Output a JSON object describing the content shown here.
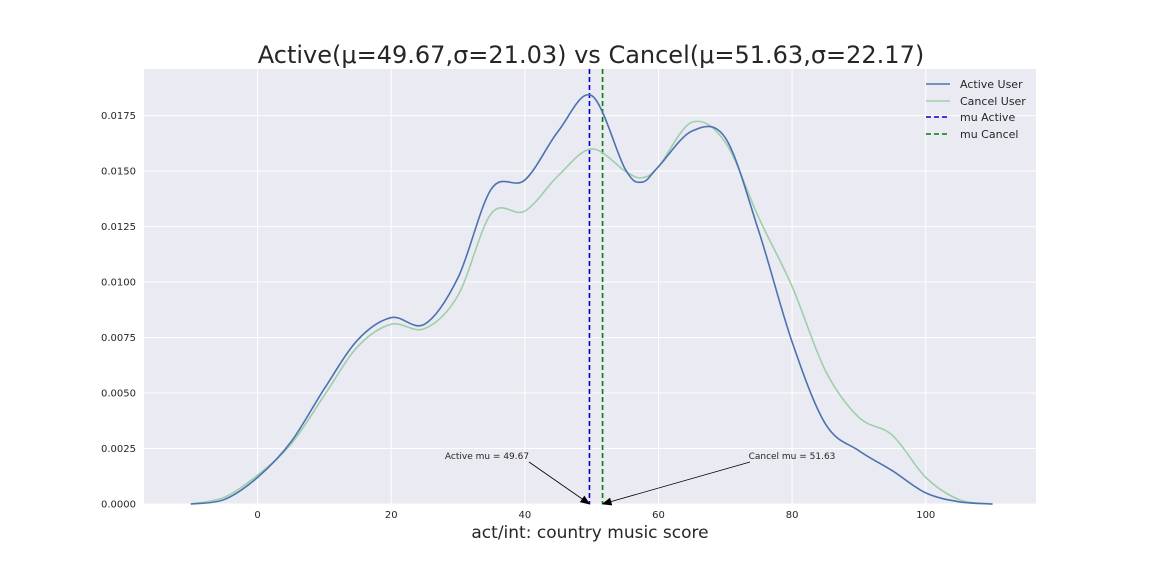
{
  "chart_data": {
    "type": "line",
    "title": "Active(μ=49.67,σ=21.03) vs Cancel(μ=51.63,σ=22.17)",
    "xlabel": "act/int: country music score",
    "ylabel": "",
    "xlim": [
      -17,
      116.5
    ],
    "ylim": [
      0,
      0.0196
    ],
    "xticks": [
      0,
      20,
      40,
      60,
      80,
      100
    ],
    "xtick_labels": [
      "0",
      "20",
      "40",
      "60",
      "80",
      "100"
    ],
    "yticks": [
      0.0,
      0.0025,
      0.005,
      0.0075,
      0.01,
      0.0125,
      0.015,
      0.0175
    ],
    "ytick_labels": [
      "0.0000",
      "0.0025",
      "0.0050",
      "0.0075",
      "0.0100",
      "0.0125",
      "0.0150",
      "0.0175"
    ],
    "grid": true,
    "legend_position": "top-right",
    "series": [
      {
        "name": "Active User",
        "color": "#4c72b0",
        "x": [
          -10,
          -5,
          0,
          5,
          10,
          15,
          20,
          25,
          30,
          35,
          40,
          45,
          50,
          55,
          57.5,
          60,
          65,
          70,
          75,
          80,
          85,
          90,
          95,
          100,
          105,
          110
        ],
        "y": [
          0.0,
          0.0002,
          0.0012,
          0.0028,
          0.0052,
          0.0074,
          0.0084,
          0.0081,
          0.0102,
          0.0142,
          0.0146,
          0.0168,
          0.0184,
          0.0151,
          0.0145,
          0.0152,
          0.0168,
          0.0165,
          0.0123,
          0.0073,
          0.0036,
          0.0024,
          0.0015,
          0.0005,
          0.0001,
          0.0
        ]
      },
      {
        "name": "Cancel User",
        "color": "#9dcfaa",
        "x": [
          -10,
          -5,
          0,
          5,
          10,
          15,
          20,
          25,
          30,
          35,
          40,
          45,
          50,
          55,
          57.5,
          60,
          65,
          70,
          75,
          80,
          85,
          90,
          95,
          100,
          105,
          110
        ],
        "y": [
          0.0,
          0.0003,
          0.0013,
          0.0027,
          0.0049,
          0.0071,
          0.0081,
          0.0079,
          0.0094,
          0.0131,
          0.0132,
          0.0148,
          0.016,
          0.015,
          0.0147,
          0.0152,
          0.0172,
          0.0163,
          0.0129,
          0.0098,
          0.006,
          0.0039,
          0.0031,
          0.0012,
          0.0002,
          0.0
        ]
      }
    ],
    "vlines": [
      {
        "name": "mu Active",
        "x": 49.67,
        "color": "#0000cc",
        "style": "dashed"
      },
      {
        "name": "mu Cancel",
        "x": 51.63,
        "color": "#008000",
        "style": "dashed"
      }
    ],
    "annotations": [
      {
        "text": "Active mu = 49.67",
        "x": 49.67,
        "y": 0.0
      },
      {
        "text": "Cancel mu = 51.63",
        "x": 51.63,
        "y": 0.0
      }
    ]
  }
}
